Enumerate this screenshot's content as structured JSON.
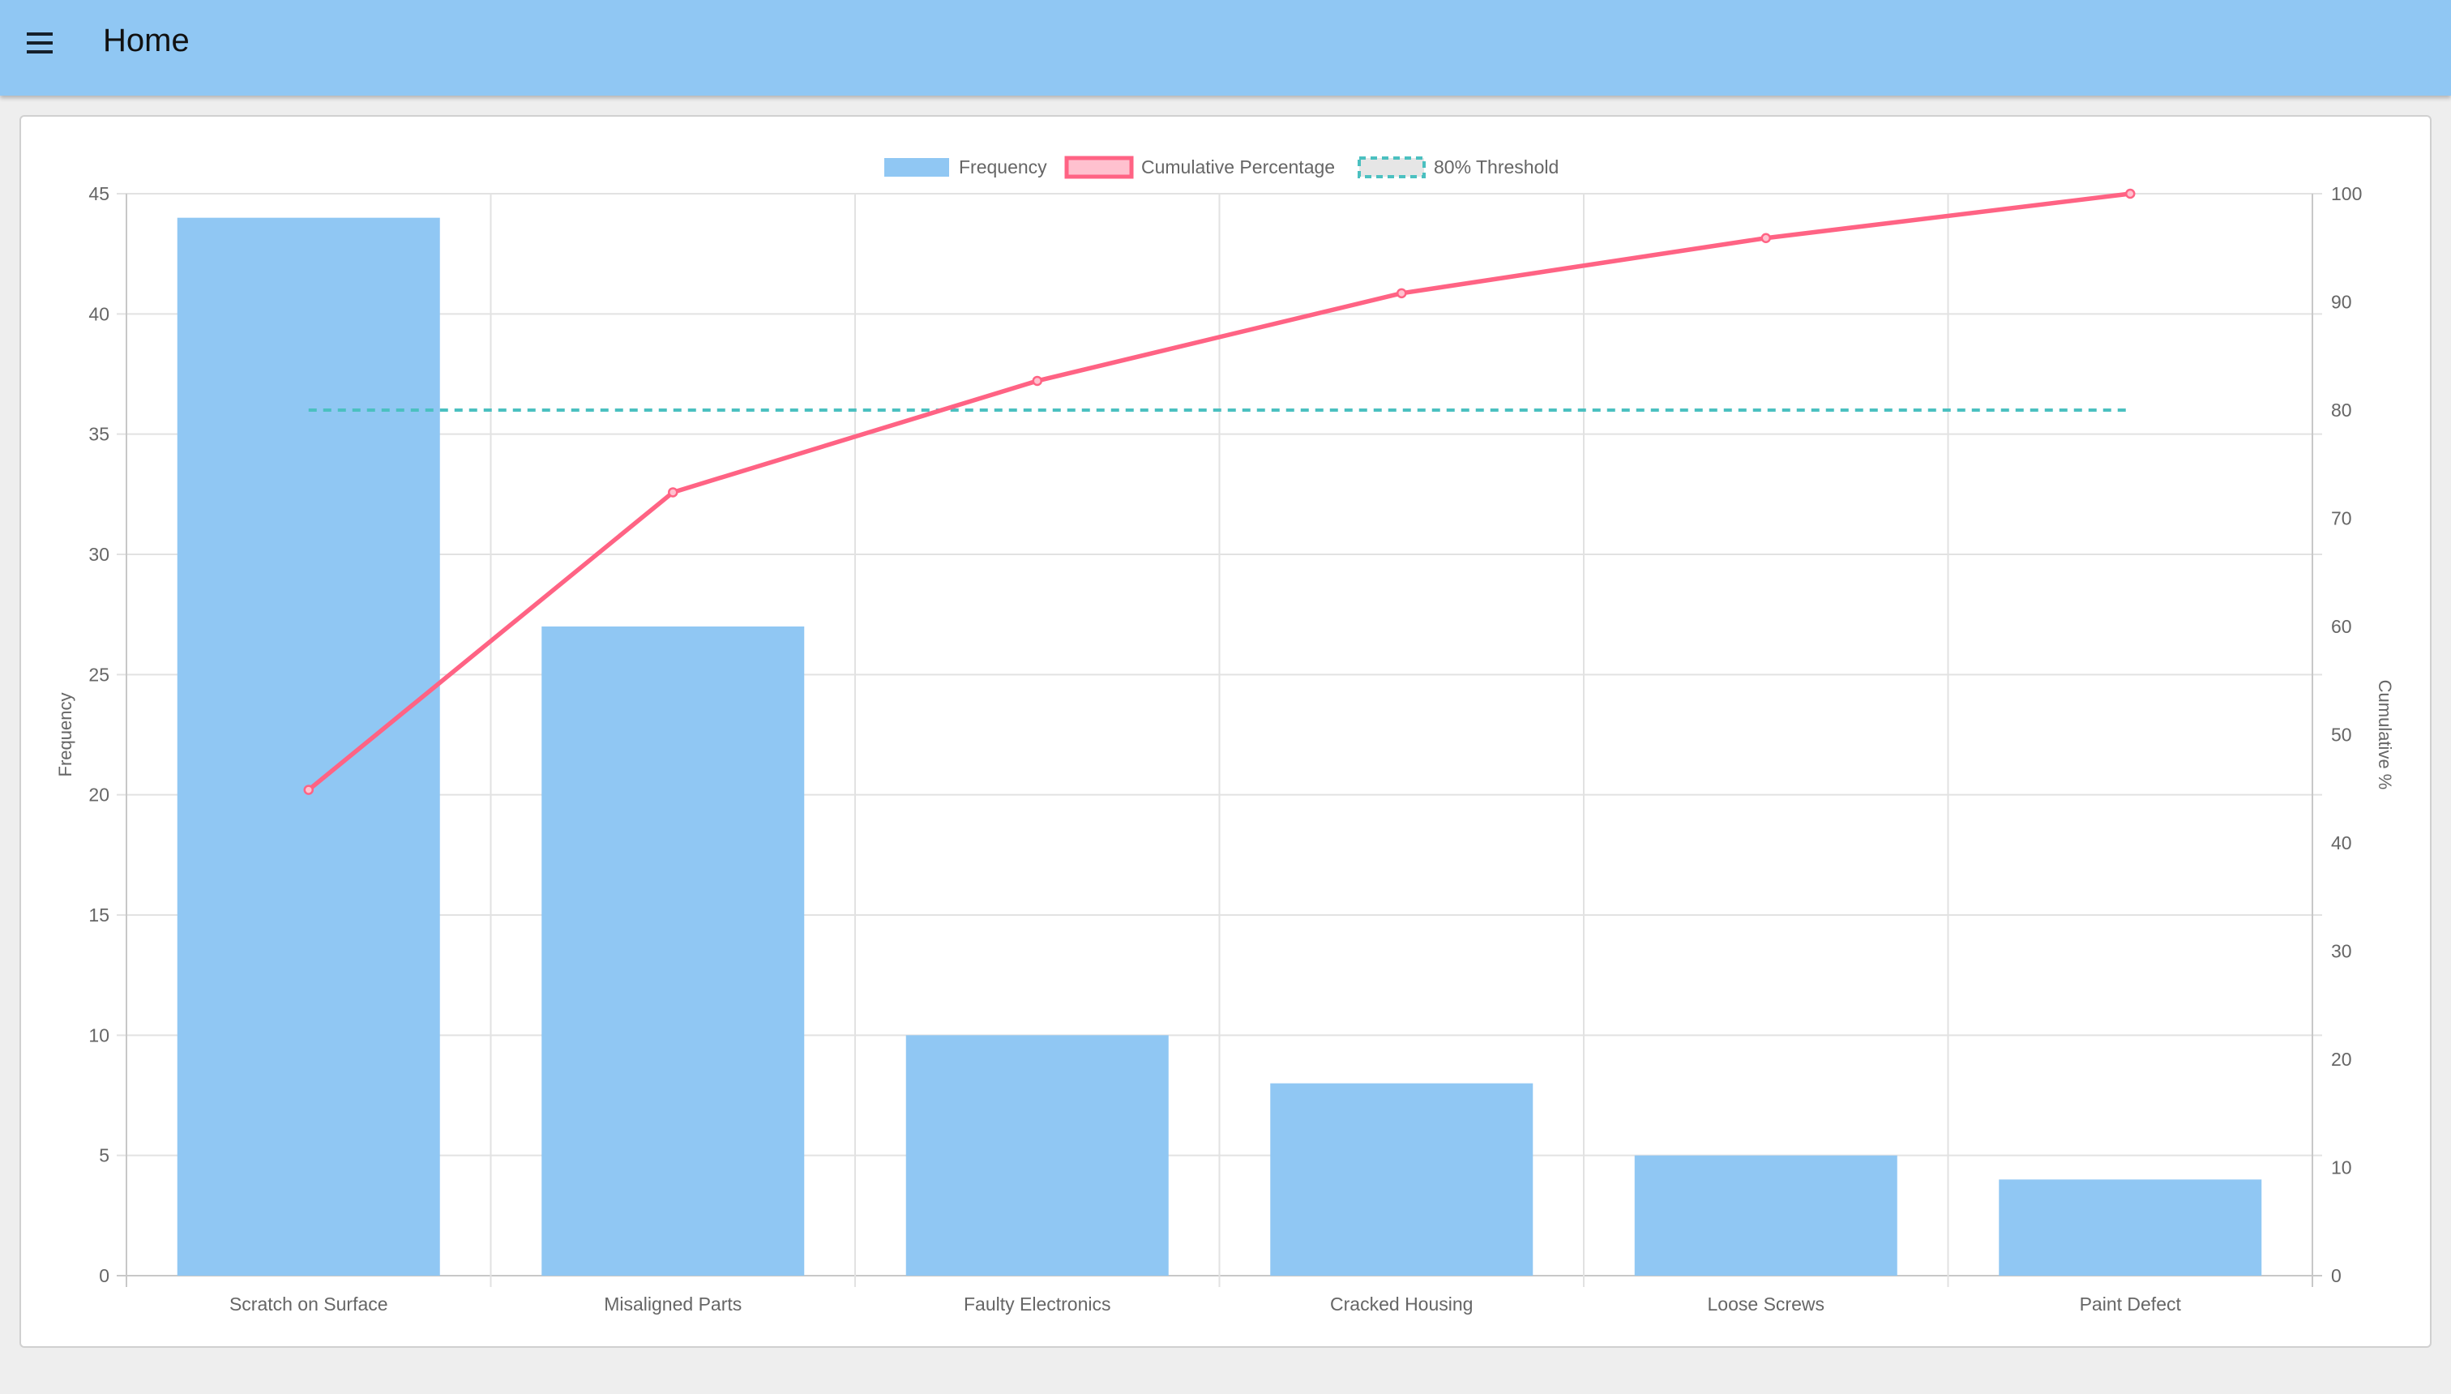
{
  "header": {
    "title": "Home",
    "menu_icon": "hamburger-menu-icon"
  },
  "chart_data": {
    "type": "bar+line",
    "categories": [
      "Scratch on Surface",
      "Misaligned Parts",
      "Faulty Electronics",
      "Cracked Housing",
      "Loose Screws",
      "Paint Defect"
    ],
    "series": [
      {
        "name": "Frequency",
        "type": "bar",
        "axis": "left",
        "values": [
          44,
          27,
          10,
          8,
          5,
          4
        ],
        "color": "#90c7f3"
      },
      {
        "name": "Cumulative Percentage",
        "type": "line",
        "axis": "right",
        "values": [
          44.9,
          72.4,
          82.7,
          90.8,
          95.9,
          100
        ],
        "color": "#ff6384"
      },
      {
        "name": "80% Threshold",
        "type": "line",
        "style": "dashed",
        "axis": "right",
        "values": [
          80,
          80,
          80,
          80,
          80,
          80
        ],
        "color": "#4bc0c0"
      }
    ],
    "ylabel": "Frequency",
    "y2label": "Cumulative %",
    "ylim": [
      0,
      45
    ],
    "yticks": [
      0,
      5,
      10,
      15,
      20,
      25,
      30,
      35,
      40,
      45
    ],
    "y2lim": [
      0,
      100
    ],
    "y2ticks": [
      0,
      10,
      20,
      30,
      40,
      50,
      60,
      70,
      80,
      90,
      100
    ],
    "grid": true,
    "legend": "top-center"
  }
}
